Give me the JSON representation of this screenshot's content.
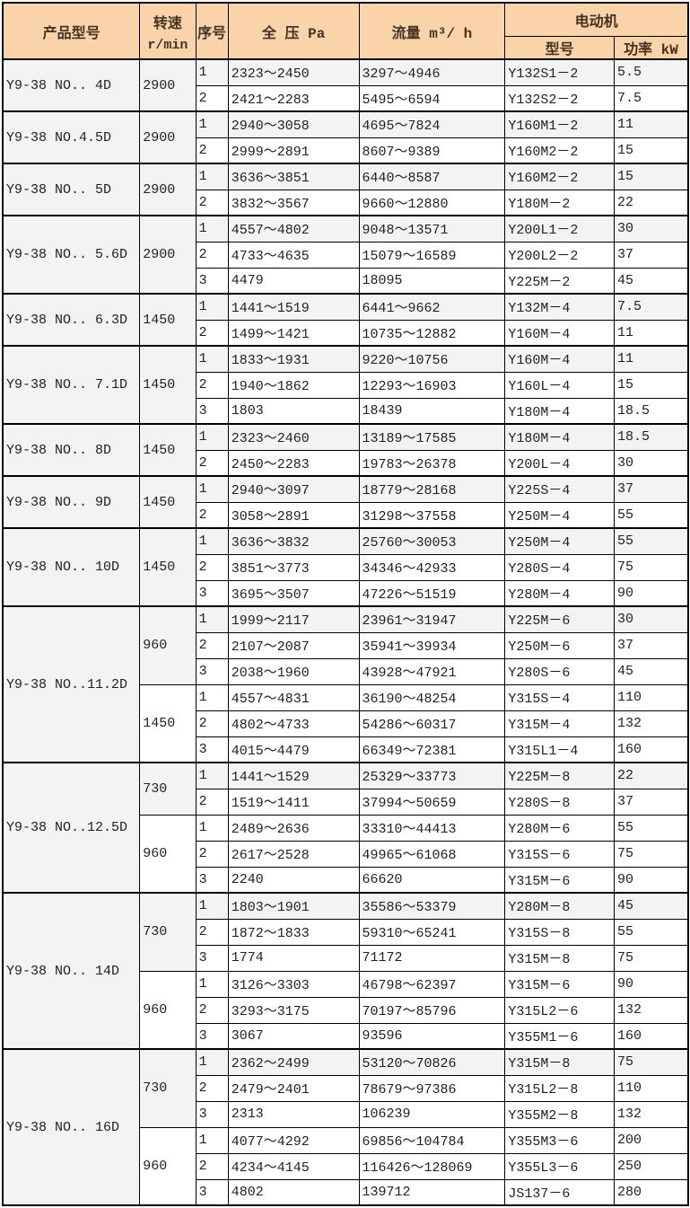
{
  "colors": {
    "header_bg": "#FBD3AB",
    "header_text": "#433323",
    "stripe_gray": "#F3F3F3",
    "row_white": "#FFFFFF",
    "border": "#000000"
  },
  "table": {
    "headers": {
      "product": "产品型号",
      "speed_line1": "转速",
      "speed_line2": "r/min",
      "seq": "序号",
      "pressure": "全 压 Pa",
      "flow": "流量 m³/ h",
      "motor": "电动机",
      "motor_model": "型号",
      "motor_power": "功率 kW"
    },
    "groups": [
      {
        "product": "Y9-38 NO.. 4D",
        "speeds": [
          {
            "rpm": "2900",
            "rows": [
              {
                "seq": "1",
                "pressure": "2323～2450",
                "flow": "3297～4946",
                "model": "Y132S1－2",
                "power": "5.5"
              },
              {
                "seq": "2",
                "pressure": "2421～2283",
                "flow": "5495～6594",
                "model": "Y132S2－2",
                "power": "7.5"
              }
            ]
          }
        ]
      },
      {
        "product": "Y9-38 NO.4.5D",
        "speeds": [
          {
            "rpm": "2900",
            "rows": [
              {
                "seq": "1",
                "pressure": "2940～3058",
                "flow": "4695～7824",
                "model": "Y160M1－2",
                "power": "11"
              },
              {
                "seq": "2",
                "pressure": "2999～2891",
                "flow": "8607～9389",
                "model": "Y160M2－2",
                "power": "15"
              }
            ]
          }
        ]
      },
      {
        "product": "Y9-38 NO.. 5D",
        "speeds": [
          {
            "rpm": "2900",
            "rows": [
              {
                "seq": "1",
                "pressure": "3636～3851",
                "flow": "6440～8587",
                "model": "Y160M2－2",
                "power": "15"
              },
              {
                "seq": "2",
                "pressure": "3832～3567",
                "flow": "9660～12880",
                "model": "Y180M－2",
                "power": "22"
              }
            ]
          }
        ]
      },
      {
        "product": "Y9-38 NO.. 5.6D",
        "speeds": [
          {
            "rpm": "2900",
            "rows": [
              {
                "seq": "1",
                "pressure": "4557～4802",
                "flow": "9048～13571",
                "model": "Y200L1－2",
                "power": "30"
              },
              {
                "seq": "2",
                "pressure": "4733～4635",
                "flow": "15079～16589",
                "model": "Y200L2－2",
                "power": "37"
              },
              {
                "seq": "3",
                "pressure": "4479",
                "flow": "18095",
                "model": "Y225M－2",
                "power": "45"
              }
            ]
          }
        ]
      },
      {
        "product": "Y9-38 NO.. 6.3D",
        "speeds": [
          {
            "rpm": "1450",
            "rows": [
              {
                "seq": "1",
                "pressure": "1441～1519",
                "flow": "6441～9662",
                "model": "Y132M－4",
                "power": "7.5"
              },
              {
                "seq": "2",
                "pressure": "1499～1421",
                "flow": "10735～12882",
                "model": "Y160M－4",
                "power": "11"
              }
            ]
          }
        ]
      },
      {
        "product": "Y9-38 NO.. 7.1D",
        "speeds": [
          {
            "rpm": "1450",
            "rows": [
              {
                "seq": "1",
                "pressure": "1833～1931",
                "flow": "9220～10756",
                "model": "Y160M－4",
                "power": "11"
              },
              {
                "seq": "2",
                "pressure": "1940～1862",
                "flow": "12293～16903",
                "model": "Y160L－4",
                "power": "15"
              },
              {
                "seq": "3",
                "pressure": "1803",
                "flow": "18439",
                "model": "Y180M－4",
                "power": "18.5"
              }
            ]
          }
        ]
      },
      {
        "product": "Y9-38 NO.. 8D",
        "speeds": [
          {
            "rpm": "1450",
            "rows": [
              {
                "seq": "1",
                "pressure": "2323～2460",
                "flow": "13189～17585",
                "model": "Y180M－4",
                "power": "18.5"
              },
              {
                "seq": "2",
                "pressure": "2450～2283",
                "flow": "19783～26378",
                "model": "Y200L－4",
                "power": "30"
              }
            ]
          }
        ]
      },
      {
        "product": "Y9-38 NO.. 9D",
        "speeds": [
          {
            "rpm": "1450",
            "rows": [
              {
                "seq": "1",
                "pressure": "2940～3097",
                "flow": "18779～28168",
                "model": "Y225S－4",
                "power": "37"
              },
              {
                "seq": "2",
                "pressure": "3058～2891",
                "flow": "31298～37558",
                "model": "Y250M－4",
                "power": "55"
              }
            ]
          }
        ]
      },
      {
        "product": "Y9-38 NO.. 10D",
        "speeds": [
          {
            "rpm": "1450",
            "rows": [
              {
                "seq": "1",
                "pressure": "3636～3832",
                "flow": "25760～30053",
                "model": "Y250M－4",
                "power": "55"
              },
              {
                "seq": "2",
                "pressure": "3851～3773",
                "flow": "34346～42933",
                "model": "Y280S－4",
                "power": "75"
              },
              {
                "seq": "3",
                "pressure": "3695～3507",
                "flow": "47226～51519",
                "model": "Y280M－4",
                "power": "90"
              }
            ]
          }
        ]
      },
      {
        "product": "Y9-38 NO..11.2D",
        "speeds": [
          {
            "rpm": "960",
            "rows": [
              {
                "seq": "1",
                "pressure": "1999～2117",
                "flow": "23961～31947",
                "model": "Y225M－6",
                "power": "30"
              },
              {
                "seq": "2",
                "pressure": "2107～2087",
                "flow": "35941～39934",
                "model": "Y250M－6",
                "power": "37"
              },
              {
                "seq": "3",
                "pressure": "2038～1960",
                "flow": "43928～47921",
                "model": "Y280S－6",
                "power": "45"
              }
            ]
          },
          {
            "rpm": "1450",
            "rows": [
              {
                "seq": "1",
                "pressure": "4557～4831",
                "flow": "36190～48254",
                "model": "Y315S－4",
                "power": "110"
              },
              {
                "seq": "2",
                "pressure": "4802～4733",
                "flow": "54286～60317",
                "model": "Y315M－4",
                "power": "132"
              },
              {
                "seq": "3",
                "pressure": "4015～4479",
                "flow": "66349～72381",
                "model": "Y315L1－4",
                "power": "160"
              }
            ]
          }
        ]
      },
      {
        "product": "Y9-38 NO..12.5D",
        "speeds": [
          {
            "rpm": "730",
            "rows": [
              {
                "seq": "1",
                "pressure": "1441～1529",
                "flow": "25329～33773",
                "model": "Y225M－8",
                "power": "22"
              },
              {
                "seq": "2",
                "pressure": "1519～1411",
                "flow": "37994～50659",
                "model": "Y280S－8",
                "power": "37"
              }
            ]
          },
          {
            "rpm": "960",
            "rows": [
              {
                "seq": "1",
                "pressure": "2489～2636",
                "flow": "33310～44413",
                "model": "Y280M－6",
                "power": "55"
              },
              {
                "seq": "2",
                "pressure": "2617～2528",
                "flow": "49965～61068",
                "model": "Y315S－6",
                "power": "75"
              },
              {
                "seq": "3",
                "pressure": "2240",
                "flow": "66620",
                "model": "Y315M－6",
                "power": "90"
              }
            ]
          }
        ]
      },
      {
        "product": "Y9-38 NO.. 14D",
        "speeds": [
          {
            "rpm": "730",
            "rows": [
              {
                "seq": "1",
                "pressure": "1803～1901",
                "flow": "35586～53379",
                "model": "Y280M－8",
                "power": "45"
              },
              {
                "seq": "2",
                "pressure": "1872～1833",
                "flow": "59310～65241",
                "model": "Y315S－8",
                "power": "55"
              },
              {
                "seq": "3",
                "pressure": "1774",
                "flow": "71172",
                "model": "Y315M－8",
                "power": "75"
              }
            ]
          },
          {
            "rpm": "960",
            "rows": [
              {
                "seq": "1",
                "pressure": "3126～3303",
                "flow": "46798～62397",
                "model": "Y315M－6",
                "power": "90"
              },
              {
                "seq": "2",
                "pressure": "3293～3175",
                "flow": "70197～85796",
                "model": "Y315L2－6",
                "power": "132"
              },
              {
                "seq": "3",
                "pressure": "3067",
                "flow": "93596",
                "model": "Y355M1－6",
                "power": "160"
              }
            ]
          }
        ]
      },
      {
        "product": "Y9-38 NO.. 16D",
        "speeds": [
          {
            "rpm": "730",
            "rows": [
              {
                "seq": "1",
                "pressure": "2362～2499",
                "flow": "53120～70826",
                "model": "Y315M－8",
                "power": "75"
              },
              {
                "seq": "2",
                "pressure": "2479～2401",
                "flow": "78679～97386",
                "model": "Y315L2－8",
                "power": "110"
              },
              {
                "seq": "3",
                "pressure": "2313",
                "flow": "106239",
                "model": "Y355M2－8",
                "power": "132"
              }
            ]
          },
          {
            "rpm": "960",
            "rows": [
              {
                "seq": "1",
                "pressure": "4077～4292",
                "flow": "69856～104784",
                "model": "Y355M3－6",
                "power": "200"
              },
              {
                "seq": "2",
                "pressure": "4234～4145",
                "flow": "116426～128069",
                "model": "Y355L3－6",
                "power": "250"
              },
              {
                "seq": "3",
                "pressure": "4802",
                "flow": "139712",
                "model": "JS137－6",
                "power": "280"
              }
            ]
          }
        ]
      }
    ]
  }
}
